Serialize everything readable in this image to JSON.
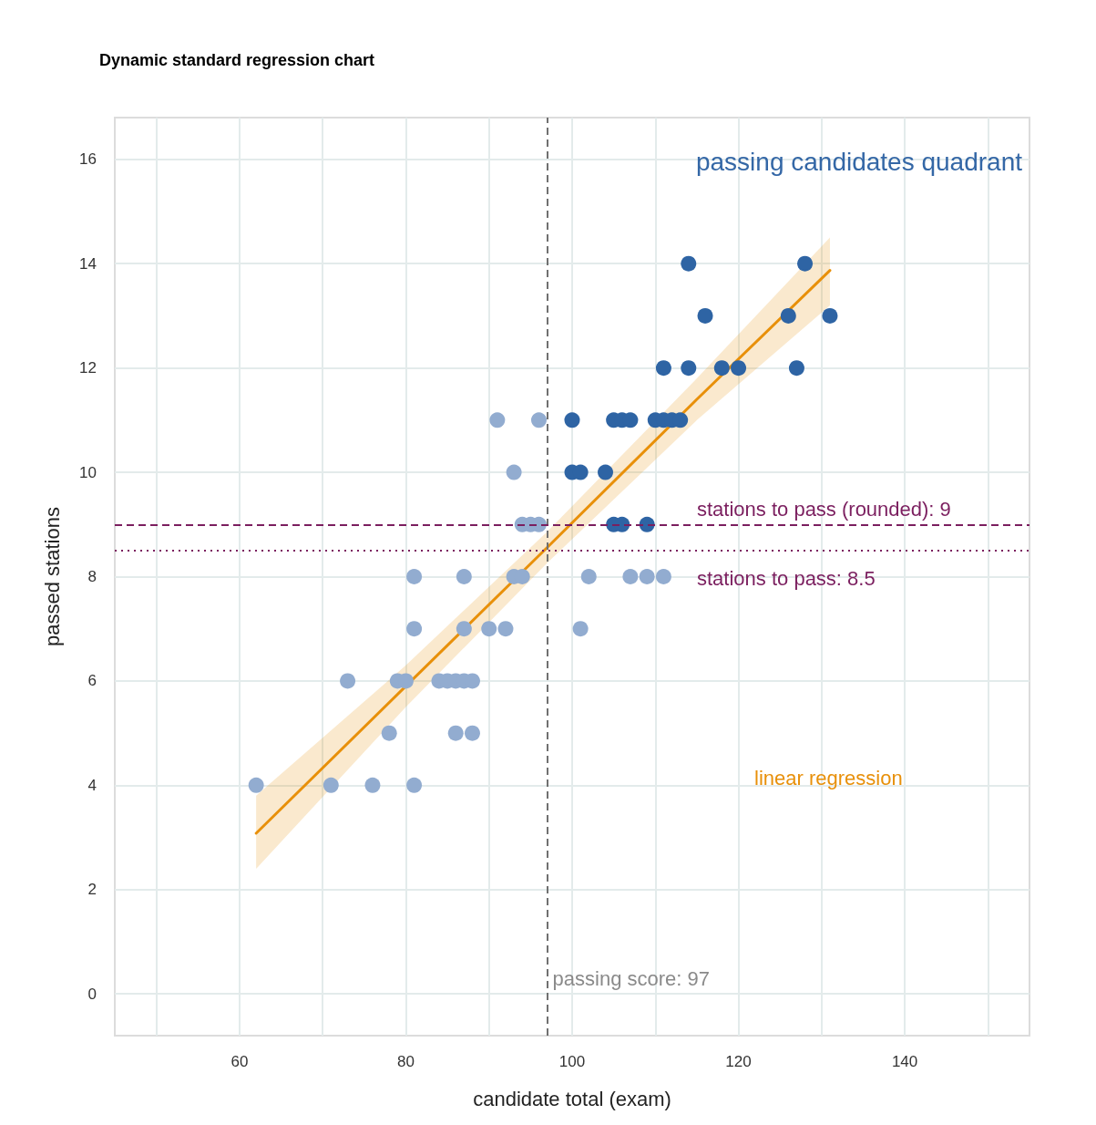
{
  "chart_data": {
    "type": "scatter",
    "title": "Dynamic standard regression chart",
    "xlabel": "candidate total (exam)",
    "ylabel": "passed stations",
    "annotations": [
      "passing candidates quadrant"
    ],
    "series": [
      {
        "color": "#92acd0",
        "marker": "circle",
        "x": [
          62,
          71,
          76,
          81,
          78,
          86,
          88,
          73,
          79,
          80,
          84,
          85,
          86,
          87,
          88,
          81,
          87,
          90,
          92,
          81,
          87,
          93,
          94,
          102,
          107,
          109,
          111,
          101,
          91,
          96,
          93,
          94,
          95,
          96
        ],
        "values": [
          4,
          4,
          4,
          4,
          5,
          5,
          5,
          6,
          6,
          6,
          6,
          6,
          6,
          6,
          6,
          7,
          7,
          7,
          7,
          8,
          8,
          8,
          8,
          8,
          8,
          8,
          8,
          7,
          11,
          11,
          10,
          9,
          9,
          9
        ]
      },
      {
        "color": "#2e64a4",
        "marker": "circle",
        "x": [
          114,
          128,
          116,
          126,
          131,
          111,
          114,
          118,
          120,
          127,
          100,
          105,
          106,
          107,
          110,
          111,
          112,
          113,
          100,
          101,
          104,
          105,
          106,
          109
        ],
        "values": [
          14,
          14,
          13,
          13,
          13,
          12,
          12,
          12,
          12,
          12,
          11,
          11,
          11,
          11,
          11,
          11,
          11,
          11,
          10,
          10,
          10,
          9,
          9,
          9
        ]
      },
      {
        "type": "line",
        "name": "linear regression",
        "color": "#e8900a",
        "x": [
          62,
          80,
          97,
          115,
          131
        ],
        "values": [
          3.08,
          5.9,
          8.56,
          11.4,
          13.87
        ],
        "lower": [
          2.4,
          5.5,
          8.26,
          11.0,
          13.2
        ],
        "upper": [
          3.8,
          6.3,
          8.86,
          11.8,
          14.5
        ]
      }
    ],
    "xlim": [
      45,
      155
    ],
    "xticks": [
      {
        "value": 50,
        "label": null
      },
      60,
      {
        "value": 70,
        "label": null
      },
      80,
      {
        "value": 90,
        "label": null
      },
      100,
      {
        "value": 110,
        "label": null
      },
      120,
      {
        "value": 130,
        "label": null
      },
      140,
      {
        "value": 150,
        "label": null
      }
    ],
    "ylim": [
      -0.8,
      16.8
    ],
    "yticks": [
      0,
      2,
      4,
      6,
      8,
      10,
      12,
      14,
      16
    ],
    "ref_lines": [
      {
        "axis": "x",
        "value": 97,
        "label": "passing score: 97",
        "color": "#707070",
        "line_style": "dashed"
      },
      {
        "axis": "y",
        "value": 9,
        "label": "stations to pass (rounded): 9",
        "color": "#7b1f5f",
        "line_style": "dashed"
      },
      {
        "axis": "y",
        "value": 8.5,
        "label": "stations to pass: 8.5",
        "color": "#7b1f5f",
        "line_style": "dotted"
      }
    ],
    "grid": true
  }
}
